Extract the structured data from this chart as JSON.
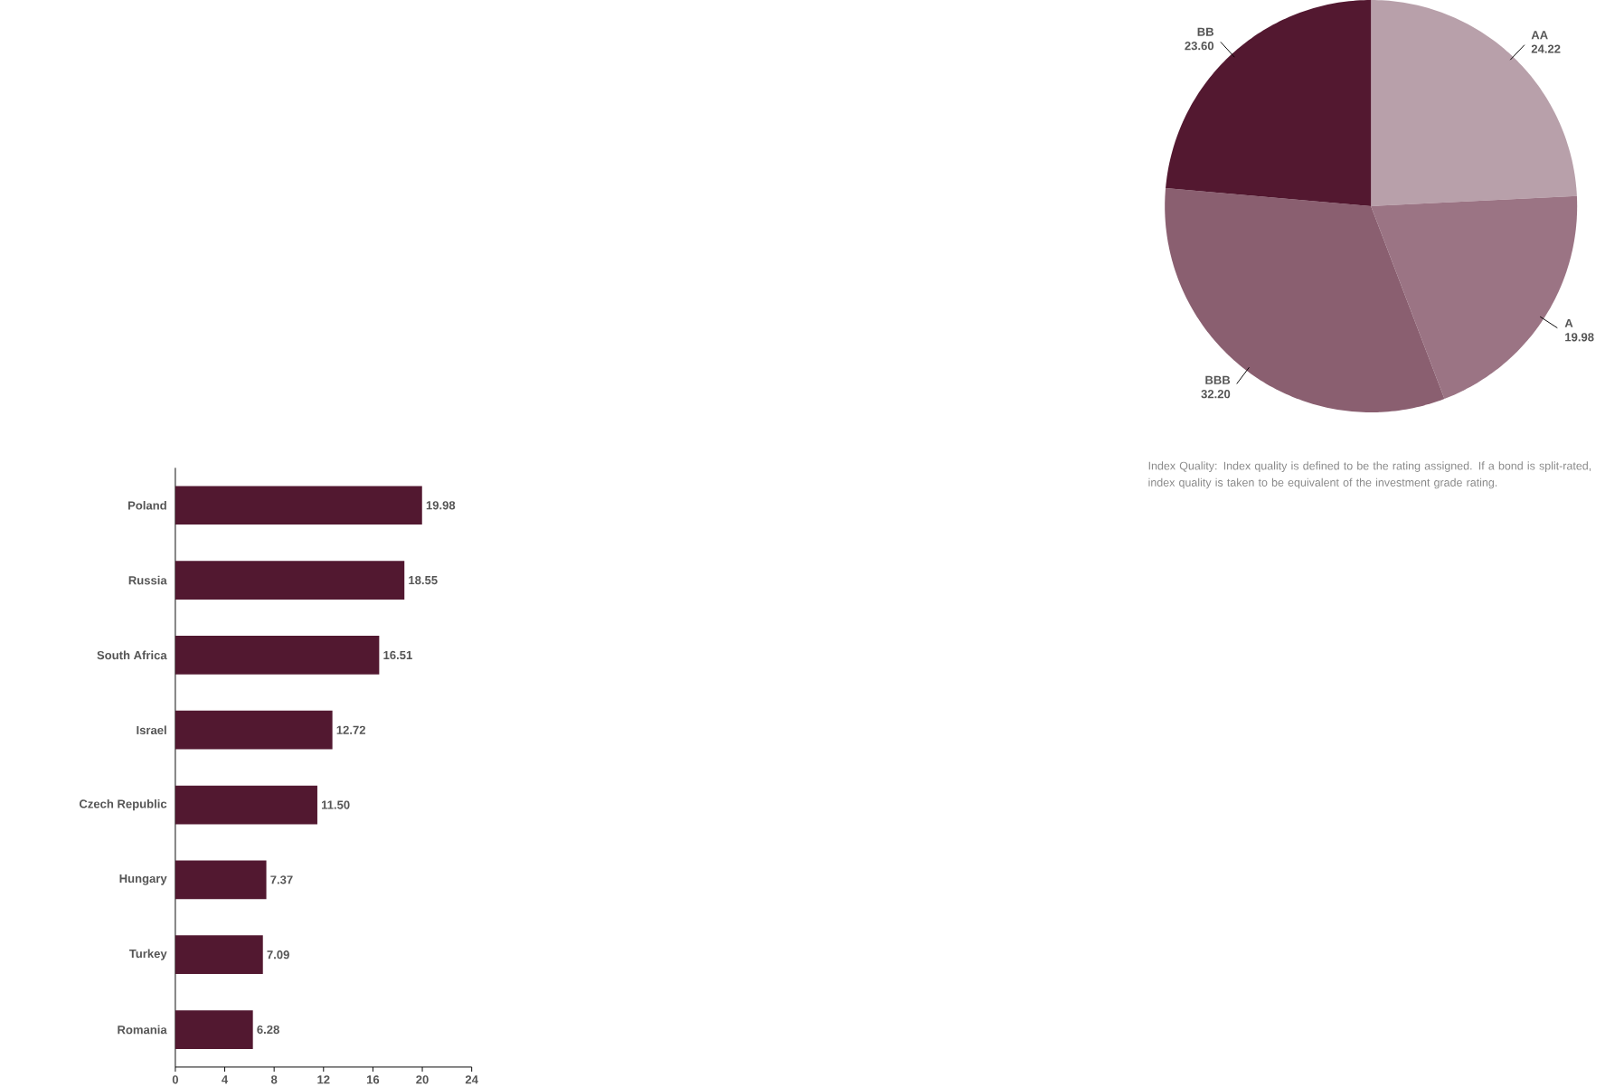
{
  "chart_data": [
    {
      "type": "bar",
      "orientation": "horizontal",
      "categories": [
        "Poland",
        "Russia",
        "South Africa",
        "Israel",
        "Czech Republic",
        "Hungary",
        "Turkey",
        "Romania"
      ],
      "values": [
        19.98,
        18.55,
        16.51,
        12.72,
        11.5,
        7.37,
        7.09,
        6.28
      ],
      "value_labels": [
        "19.98",
        "18.55",
        "16.51",
        "12.72",
        "11.50",
        "7.37",
        "7.09",
        "6.28"
      ],
      "color": "#521830",
      "xlim": [
        0,
        24
      ],
      "xticks": [
        0,
        4,
        8,
        12,
        16,
        20,
        24
      ]
    },
    {
      "type": "pie",
      "categories": [
        "AA",
        "A",
        "BBB",
        "BB"
      ],
      "values": [
        24.22,
        19.98,
        32.2,
        23.6
      ],
      "value_labels": [
        "24.22",
        "19.98",
        "32.20",
        "23.60"
      ],
      "colors": [
        "#b8a0aa",
        "#9b7484",
        "#8a5f70",
        "#531830"
      ],
      "annotations": [
        "Index Quality: Index quality is defined to be the rating assigned. If a bond is split-rated, index quality is taken to be equivalent of the investment grade rating."
      ]
    }
  ]
}
